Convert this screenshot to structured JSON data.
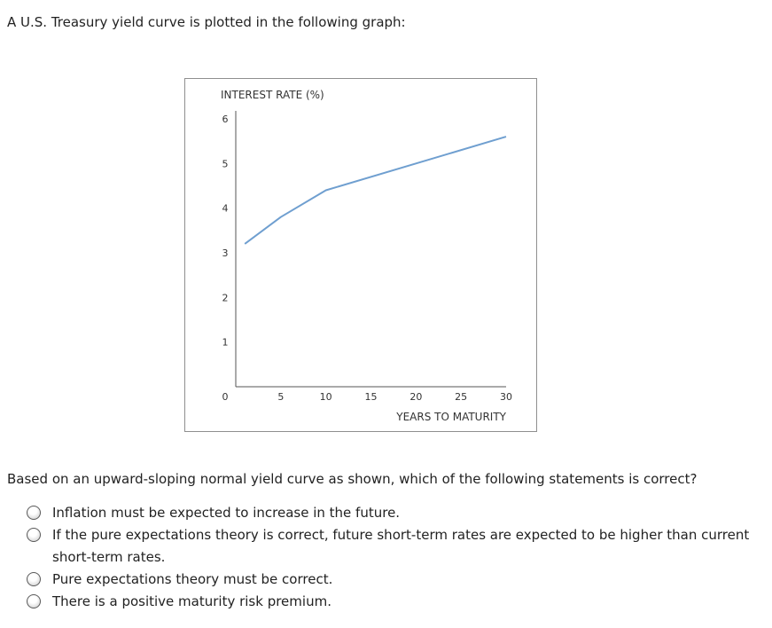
{
  "intro_text": "A U.S. Treasury yield curve is plotted in the following graph:",
  "chart_data": {
    "type": "line",
    "ylabel": "INTEREST RATE (%)",
    "xlabel": "YEARS TO MATURITY",
    "ylim": [
      0,
      6
    ],
    "xlim": [
      0,
      30
    ],
    "y_ticks": [
      "6",
      "5",
      "4",
      "3",
      "2",
      "1",
      "0"
    ],
    "x_ticks": [
      "5",
      "10",
      "15",
      "20",
      "25",
      "30"
    ],
    "grid": false,
    "series": [
      {
        "color": "#6f9fd0",
        "x": [
          1,
          5,
          10,
          20,
          30
        ],
        "y": [
          3.2,
          3.8,
          4.4,
          5.0,
          5.6
        ]
      }
    ]
  },
  "question_text": "Based on an upward-sloping normal yield curve as shown, which of the following statements is correct?",
  "options": [
    {
      "label": "Inflation must be expected to increase in the future."
    },
    {
      "label": "If the pure expectations theory is correct, future short-term rates are expected to be higher than current short-term rates."
    },
    {
      "label": "Pure expectations theory must be correct."
    },
    {
      "label": "There is a positive maturity risk premium."
    }
  ]
}
